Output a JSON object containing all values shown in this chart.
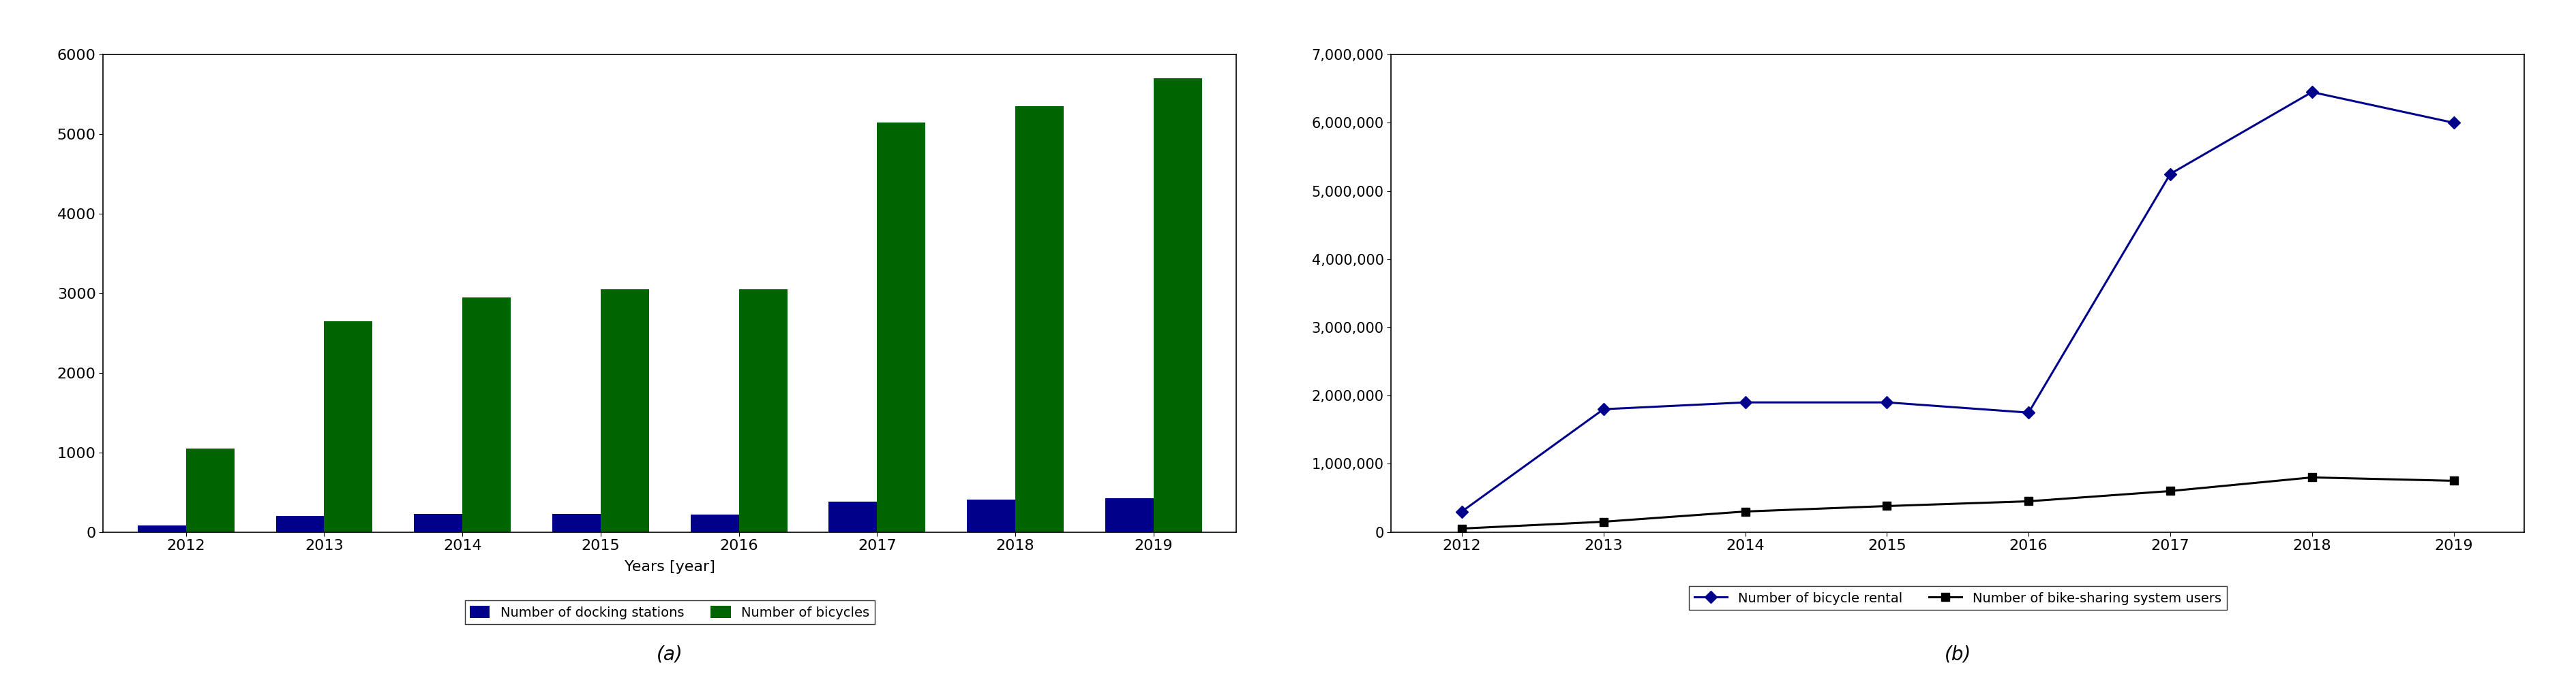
{
  "years": [
    2012,
    2013,
    2014,
    2015,
    2016,
    2017,
    2018,
    2019
  ],
  "docking_stations": [
    80,
    200,
    230,
    230,
    220,
    380,
    410,
    420
  ],
  "bicycles": [
    1050,
    2650,
    2950,
    3050,
    3050,
    5150,
    5350,
    5700
  ],
  "bar_blue_color": "#00008B",
  "bar_green_color": "#006400",
  "bar_ylim": [
    0,
    6000
  ],
  "bar_yticks": [
    0,
    1000,
    2000,
    3000,
    4000,
    5000,
    6000
  ],
  "xlabel_a": "Years [year]",
  "legend_a_label1": "Number of docking stations",
  "legend_a_label2": "Number of bicycles",
  "caption_a": "(a)",
  "bicycle_rental": [
    300000,
    1800000,
    1900000,
    1900000,
    1750000,
    5250000,
    6450000,
    6000000
  ],
  "bike_sharing_users": [
    50000,
    150000,
    300000,
    380000,
    450000,
    600000,
    800000,
    750000
  ],
  "line_blue_color": "#00008B",
  "line_black_color": "#000000",
  "line_ylim": [
    0,
    7000000
  ],
  "line_yticks": [
    0,
    1000000,
    2000000,
    3000000,
    4000000,
    5000000,
    6000000,
    7000000
  ],
  "legend_b_label1": "Number of bicycle rental",
  "legend_b_label2": "Number of bike-sharing system users",
  "caption_b": "(b)",
  "background_color": "#ffffff"
}
